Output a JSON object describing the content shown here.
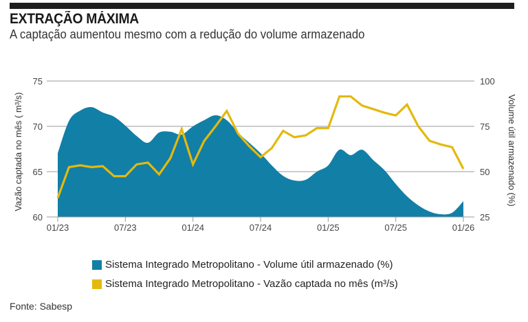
{
  "header": {
    "title": "EXTRAÇÃO MÁXIMA",
    "subtitle": "A captação aumentou mesmo com a redução do volume armazenado"
  },
  "colors": {
    "volume": "#127fa6",
    "vazao": "#e3b90f",
    "grid": "#999999"
  },
  "source": "Fonte: Sabesp",
  "chart_data": {
    "type": "area+line",
    "title": "EXTRAÇÃO MÁXIMA",
    "subtitle": "A captação aumentou mesmo com a redução do volume armazenado",
    "x_tick_labels": [
      "01/23",
      "07/23",
      "01/24",
      "07/24",
      "01/25",
      "07/25",
      "01/26"
    ],
    "x_months": 37,
    "left_axis": {
      "label": "Vazão captada no mês ( m³/s)",
      "range": [
        60,
        75
      ],
      "ticks": [
        60,
        65,
        70,
        75
      ]
    },
    "right_axis": {
      "label": "Volume útil armazenado (%)",
      "range": [
        25,
        100
      ],
      "ticks": [
        25,
        50,
        75,
        100
      ]
    },
    "grid": true,
    "legend_position": "bottom",
    "series": [
      {
        "name": "Sistema Integrado Metropolitano - Volume útil armazenado (%)",
        "type": "area",
        "axis": "right",
        "values": [
          60.2,
          78,
          83.7,
          85.6,
          82.6,
          80.3,
          75.4,
          69.7,
          65.9,
          71.6,
          72,
          70.5,
          75,
          78.4,
          81.1,
          78.4,
          71.6,
          65.9,
          60.2,
          53.4,
          47.7,
          45.1,
          45.5,
          50,
          53.4,
          62.1,
          59.1,
          62.1,
          56.4,
          50.8,
          43.2,
          36.4,
          31.4,
          28,
          26.5,
          27.3,
          33.7
        ]
      },
      {
        "name": "Sistema Integrado Metropolitano - Vazão captada no mês (m³/s)",
        "type": "line",
        "axis": "left",
        "values": [
          62.1,
          65.5,
          65.7,
          65.5,
          65.6,
          64.5,
          64.5,
          65.8,
          66,
          64.7,
          66.5,
          69.7,
          65.8,
          68.4,
          70,
          71.7,
          69.2,
          67.8,
          66.6,
          67.6,
          69.5,
          68.8,
          69,
          69.8,
          69.8,
          73.3,
          73.3,
          72.3,
          71.9,
          71.5,
          71.2,
          72.4,
          70,
          68.4,
          68,
          67.7,
          65.3
        ]
      }
    ]
  }
}
